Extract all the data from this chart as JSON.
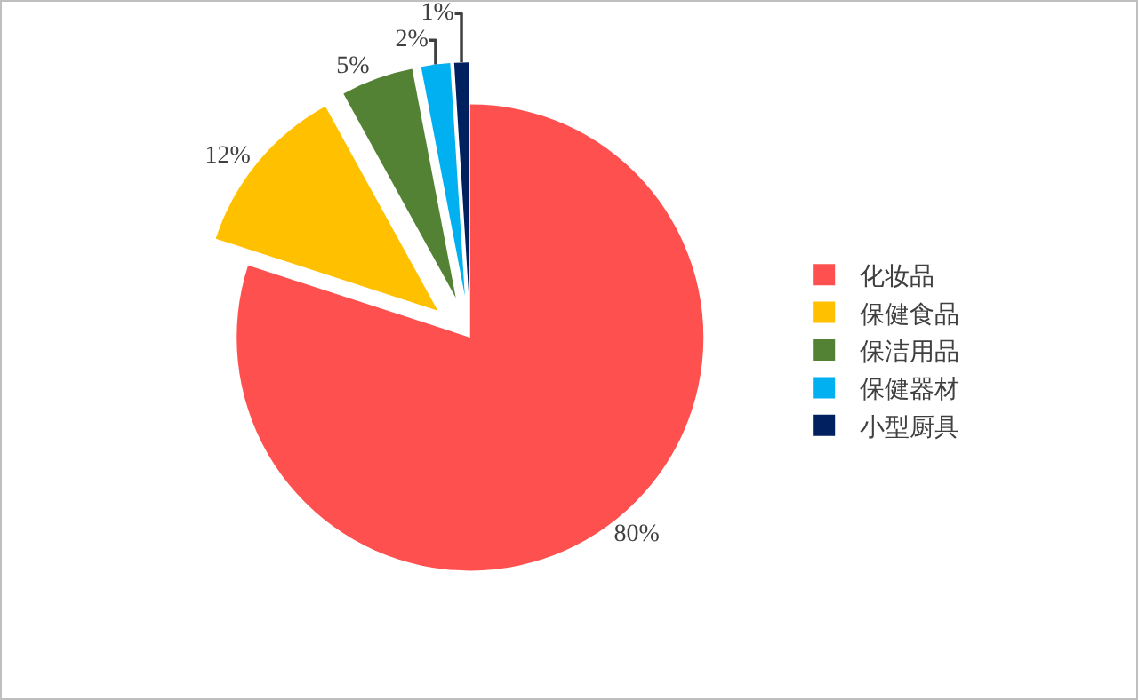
{
  "chart_data": {
    "type": "pie",
    "categories": [
      "化妆品",
      "保健食品",
      "保洁用品",
      "保健器材",
      "小型厨具"
    ],
    "values": [
      80,
      12,
      5,
      2,
      1
    ],
    "colors": [
      "#ff5050",
      "#ffc000",
      "#548235",
      "#00b0f0",
      "#002060"
    ],
    "value_labels": [
      "80%",
      "12%",
      "5%",
      "2%",
      "1%"
    ],
    "legend": "right"
  }
}
